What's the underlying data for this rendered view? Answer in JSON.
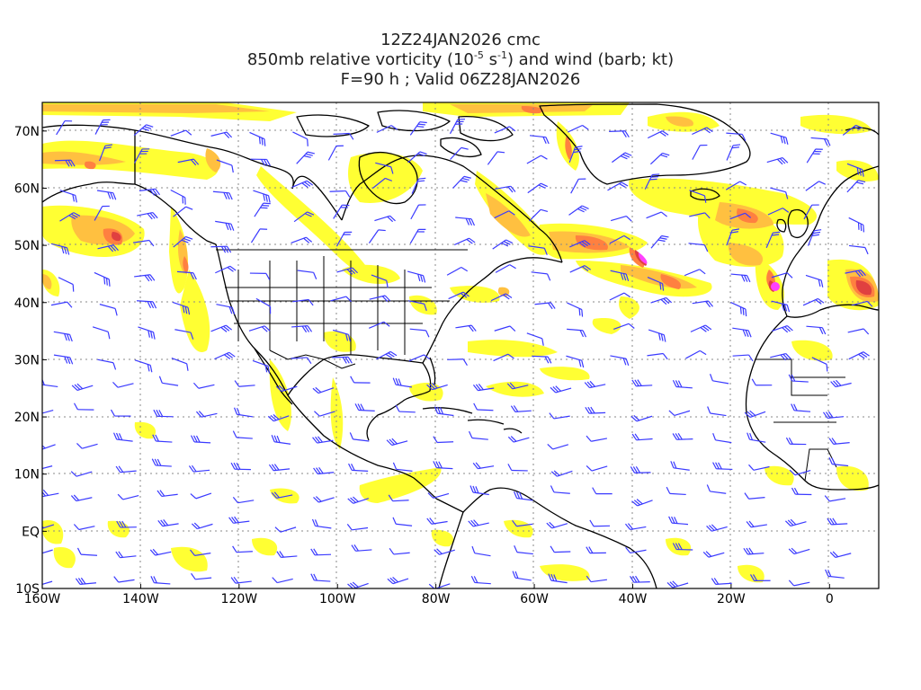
{
  "title": {
    "line1": "12Z24JAN2026 cmc",
    "line2_pre": "850mb relative vorticity (10",
    "line2_exp1": "-5",
    "line2_mid": " s",
    "line2_exp2": "-1",
    "line2_post": ") and wind (barb; kt)",
    "line3": "F=90 h ; Valid 06Z28JAN2026"
  },
  "map": {
    "projection": "cylindrical equidistant",
    "lon_range": [
      -160,
      10
    ],
    "lat_range": [
      -10,
      75
    ],
    "lon_ticks": [
      "160W",
      "140W",
      "120W",
      "100W",
      "80W",
      "60W",
      "40W",
      "20W",
      "0"
    ],
    "lat_ticks": [
      "70N",
      "60N",
      "50N",
      "40N",
      "30N",
      "20N",
      "10N",
      "EQ",
      "10S"
    ],
    "grid": "dotted gray",
    "colors": {
      "vort_low": "#ffff33",
      "vort_mid": "#ffc040",
      "vort_high": "#ff8040",
      "vort_max": "#e04040",
      "vort_extreme": "#ff40ff",
      "barb": "#3a3aff",
      "coast": "#000000"
    }
  }
}
